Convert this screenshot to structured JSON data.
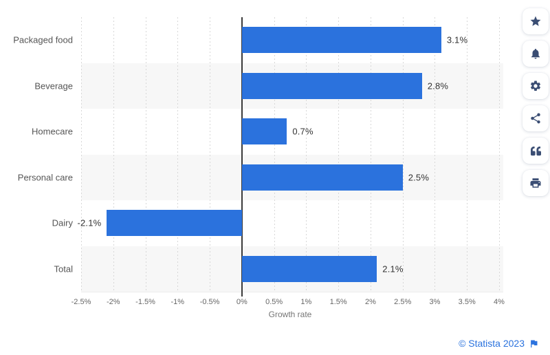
{
  "chart_data": {
    "type": "bar",
    "orientation": "horizontal",
    "categories": [
      "Packaged food",
      "Beverage",
      "Homecare",
      "Personal care",
      "Dairy",
      "Total"
    ],
    "values": [
      3.1,
      2.8,
      0.7,
      2.5,
      -2.1,
      2.1
    ],
    "value_labels": [
      "3.1%",
      "2.8%",
      "0.7%",
      "2.5%",
      "-2.1%",
      "2.1%"
    ],
    "xlabel": "Growth rate",
    "xlim": [
      -2.5,
      4
    ],
    "x_ticks": [
      -2.5,
      -2,
      -1.5,
      -1,
      -0.5,
      0,
      0.5,
      1,
      1.5,
      2,
      2.5,
      3,
      3.5,
      4
    ],
    "x_tick_labels": [
      "-2.5%",
      "-2%",
      "-1.5%",
      "-1%",
      "-0.5%",
      "0%",
      "0.5%",
      "1%",
      "1.5%",
      "2%",
      "2.5%",
      "3%",
      "3.5%",
      "4%"
    ],
    "grid": "vertical-dotted",
    "row_striping": "alternate",
    "legend": "none"
  },
  "colors": {
    "bar": "#2b72dd",
    "stripe": "#f7f7f7",
    "gridline": "#d7d7d7",
    "zero_line": "#3a3a3a",
    "category_label": "#555555",
    "value_label": "#333333",
    "tick_label": "#666666",
    "axis_title": "#757575",
    "link_blue": "#2a72de",
    "icon_navy": "#3a4d73"
  },
  "sidebar": {
    "buttons": [
      {
        "name": "favorite-button",
        "icon": "star-icon"
      },
      {
        "name": "alert-button",
        "icon": "bell-icon"
      },
      {
        "name": "settings-button",
        "icon": "gear-icon"
      },
      {
        "name": "share-button",
        "icon": "share-icon"
      },
      {
        "name": "cite-button",
        "icon": "quote-icon"
      },
      {
        "name": "print-button",
        "icon": "print-icon"
      }
    ]
  },
  "footer": {
    "copyright_text": "© Statista 2023",
    "flag_icon": "flag-icon"
  }
}
